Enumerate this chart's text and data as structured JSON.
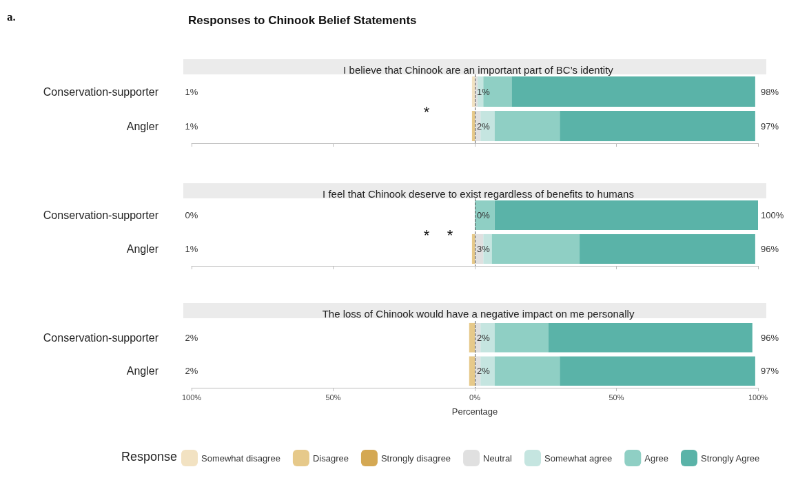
{
  "chart_data": [
    {
      "type": "bar",
      "orientation": "horizontal",
      "stacked": true,
      "title": "Responses to Chinook Belief Statements",
      "subtitle": "I believe that Chinook are an important part of BC’s identity",
      "categories": [
        "Conservation-supporter",
        "Angler"
      ],
      "series": [
        {
          "color": "#f2e2c2",
          "values": [
            -1,
            0
          ]
        },
        {
          "color": "#e6c98a",
          "values": [
            0,
            -1
          ]
        },
        {
          "color": "#d4a853",
          "values": [
            0,
            0
          ]
        },
        {
          "color": "#e0e0e0",
          "values": [
            1,
            2
          ]
        },
        {
          "color": "#c5e5e0",
          "values": [
            2,
            5
          ]
        },
        {
          "color": "#8fcfc4",
          "values": [
            10,
            23
          ]
        },
        {
          "color": "#5ab3a8",
          "values": [
            86,
            69
          ]
        }
      ],
      "xlim": [
        -100,
        100
      ],
      "xticks": [
        {
          "value": -100,
          "label": null
        },
        {
          "value": -50,
          "label": null
        },
        {
          "value": 0,
          "label": null
        },
        {
          "value": 50,
          "label": null
        },
        {
          "value": 100,
          "label": null
        }
      ],
      "tick_labels": "y",
      "ref_lines": [
        {
          "axis": "x",
          "value": 0,
          "line_style": "dashed"
        }
      ],
      "annotations": [
        "a.",
        "1%",
        "1%",
        "98%",
        "1%",
        "2%",
        "97%",
        "*"
      ]
    },
    {
      "type": "bar",
      "orientation": "horizontal",
      "stacked": true,
      "subtitle": "I feel that Chinook deserve to exist regardless of benefits to humans",
      "categories": [
        "Conservation-supporter",
        "Angler"
      ],
      "series": [
        {
          "color": "#f2e2c2",
          "values": [
            0,
            0
          ]
        },
        {
          "color": "#e6c98a",
          "values": [
            0,
            -1
          ]
        },
        {
          "color": "#d4a853",
          "values": [
            0,
            0
          ]
        },
        {
          "color": "#e0e0e0",
          "values": [
            0,
            3
          ]
        },
        {
          "color": "#c5e5e0",
          "values": [
            0,
            3
          ]
        },
        {
          "color": "#8fcfc4",
          "values": [
            7,
            31
          ]
        },
        {
          "color": "#5ab3a8",
          "values": [
            93,
            62
          ]
        }
      ],
      "xlim": [
        -100,
        100
      ],
      "xticks": [
        {
          "value": -100,
          "label": null
        },
        {
          "value": -50,
          "label": null
        },
        {
          "value": 0,
          "label": null
        },
        {
          "value": 50,
          "label": null
        },
        {
          "value": 100,
          "label": null
        }
      ],
      "tick_labels": "y",
      "ref_lines": [
        {
          "axis": "x",
          "value": 0,
          "line_style": "dashed"
        }
      ],
      "annotations": [
        "0%",
        "0%",
        "100%",
        "1%",
        "3%",
        "96%",
        "*",
        "*"
      ]
    },
    {
      "type": "bar",
      "orientation": "horizontal",
      "stacked": true,
      "subtitle": "The loss of Chinook would have a negative impact on me personally",
      "categories": [
        "Conservation-supporter",
        "Angler"
      ],
      "series": [
        {
          "name": "Somewhat disagree",
          "color": "#f2e2c2",
          "values": [
            0,
            0
          ]
        },
        {
          "name": "Disagree",
          "color": "#e6c98a",
          "values": [
            -2,
            -2
          ]
        },
        {
          "name": "Strongly disagree",
          "color": "#d4a853",
          "values": [
            0,
            0
          ]
        },
        {
          "name": "Neutral",
          "color": "#e0e0e0",
          "values": [
            2,
            2
          ]
        },
        {
          "name": "Somewhat agree",
          "color": "#c5e5e0",
          "values": [
            5,
            5
          ]
        },
        {
          "name": "Agree",
          "color": "#8fcfc4",
          "values": [
            19,
            23
          ]
        },
        {
          "name": "Strongly Agree",
          "color": "#5ab3a8",
          "values": [
            72,
            69
          ]
        }
      ],
      "xlim": [
        -100,
        100
      ],
      "xticks": [
        {
          "value": -100,
          "label": "100%"
        },
        {
          "value": -50,
          "label": "50%"
        },
        {
          "value": 0,
          "label": "0%"
        },
        {
          "value": 50,
          "label": "50%"
        },
        {
          "value": 100,
          "label": "100%"
        }
      ],
      "xlabel": "Percentage",
      "legend": "bottom",
      "legend_title": "Response",
      "ref_lines": [
        {
          "axis": "x",
          "value": 0,
          "line_style": "dashed"
        }
      ],
      "annotations": [
        "2%",
        "2%",
        "96%",
        "2%",
        "2%",
        "97%"
      ]
    }
  ]
}
